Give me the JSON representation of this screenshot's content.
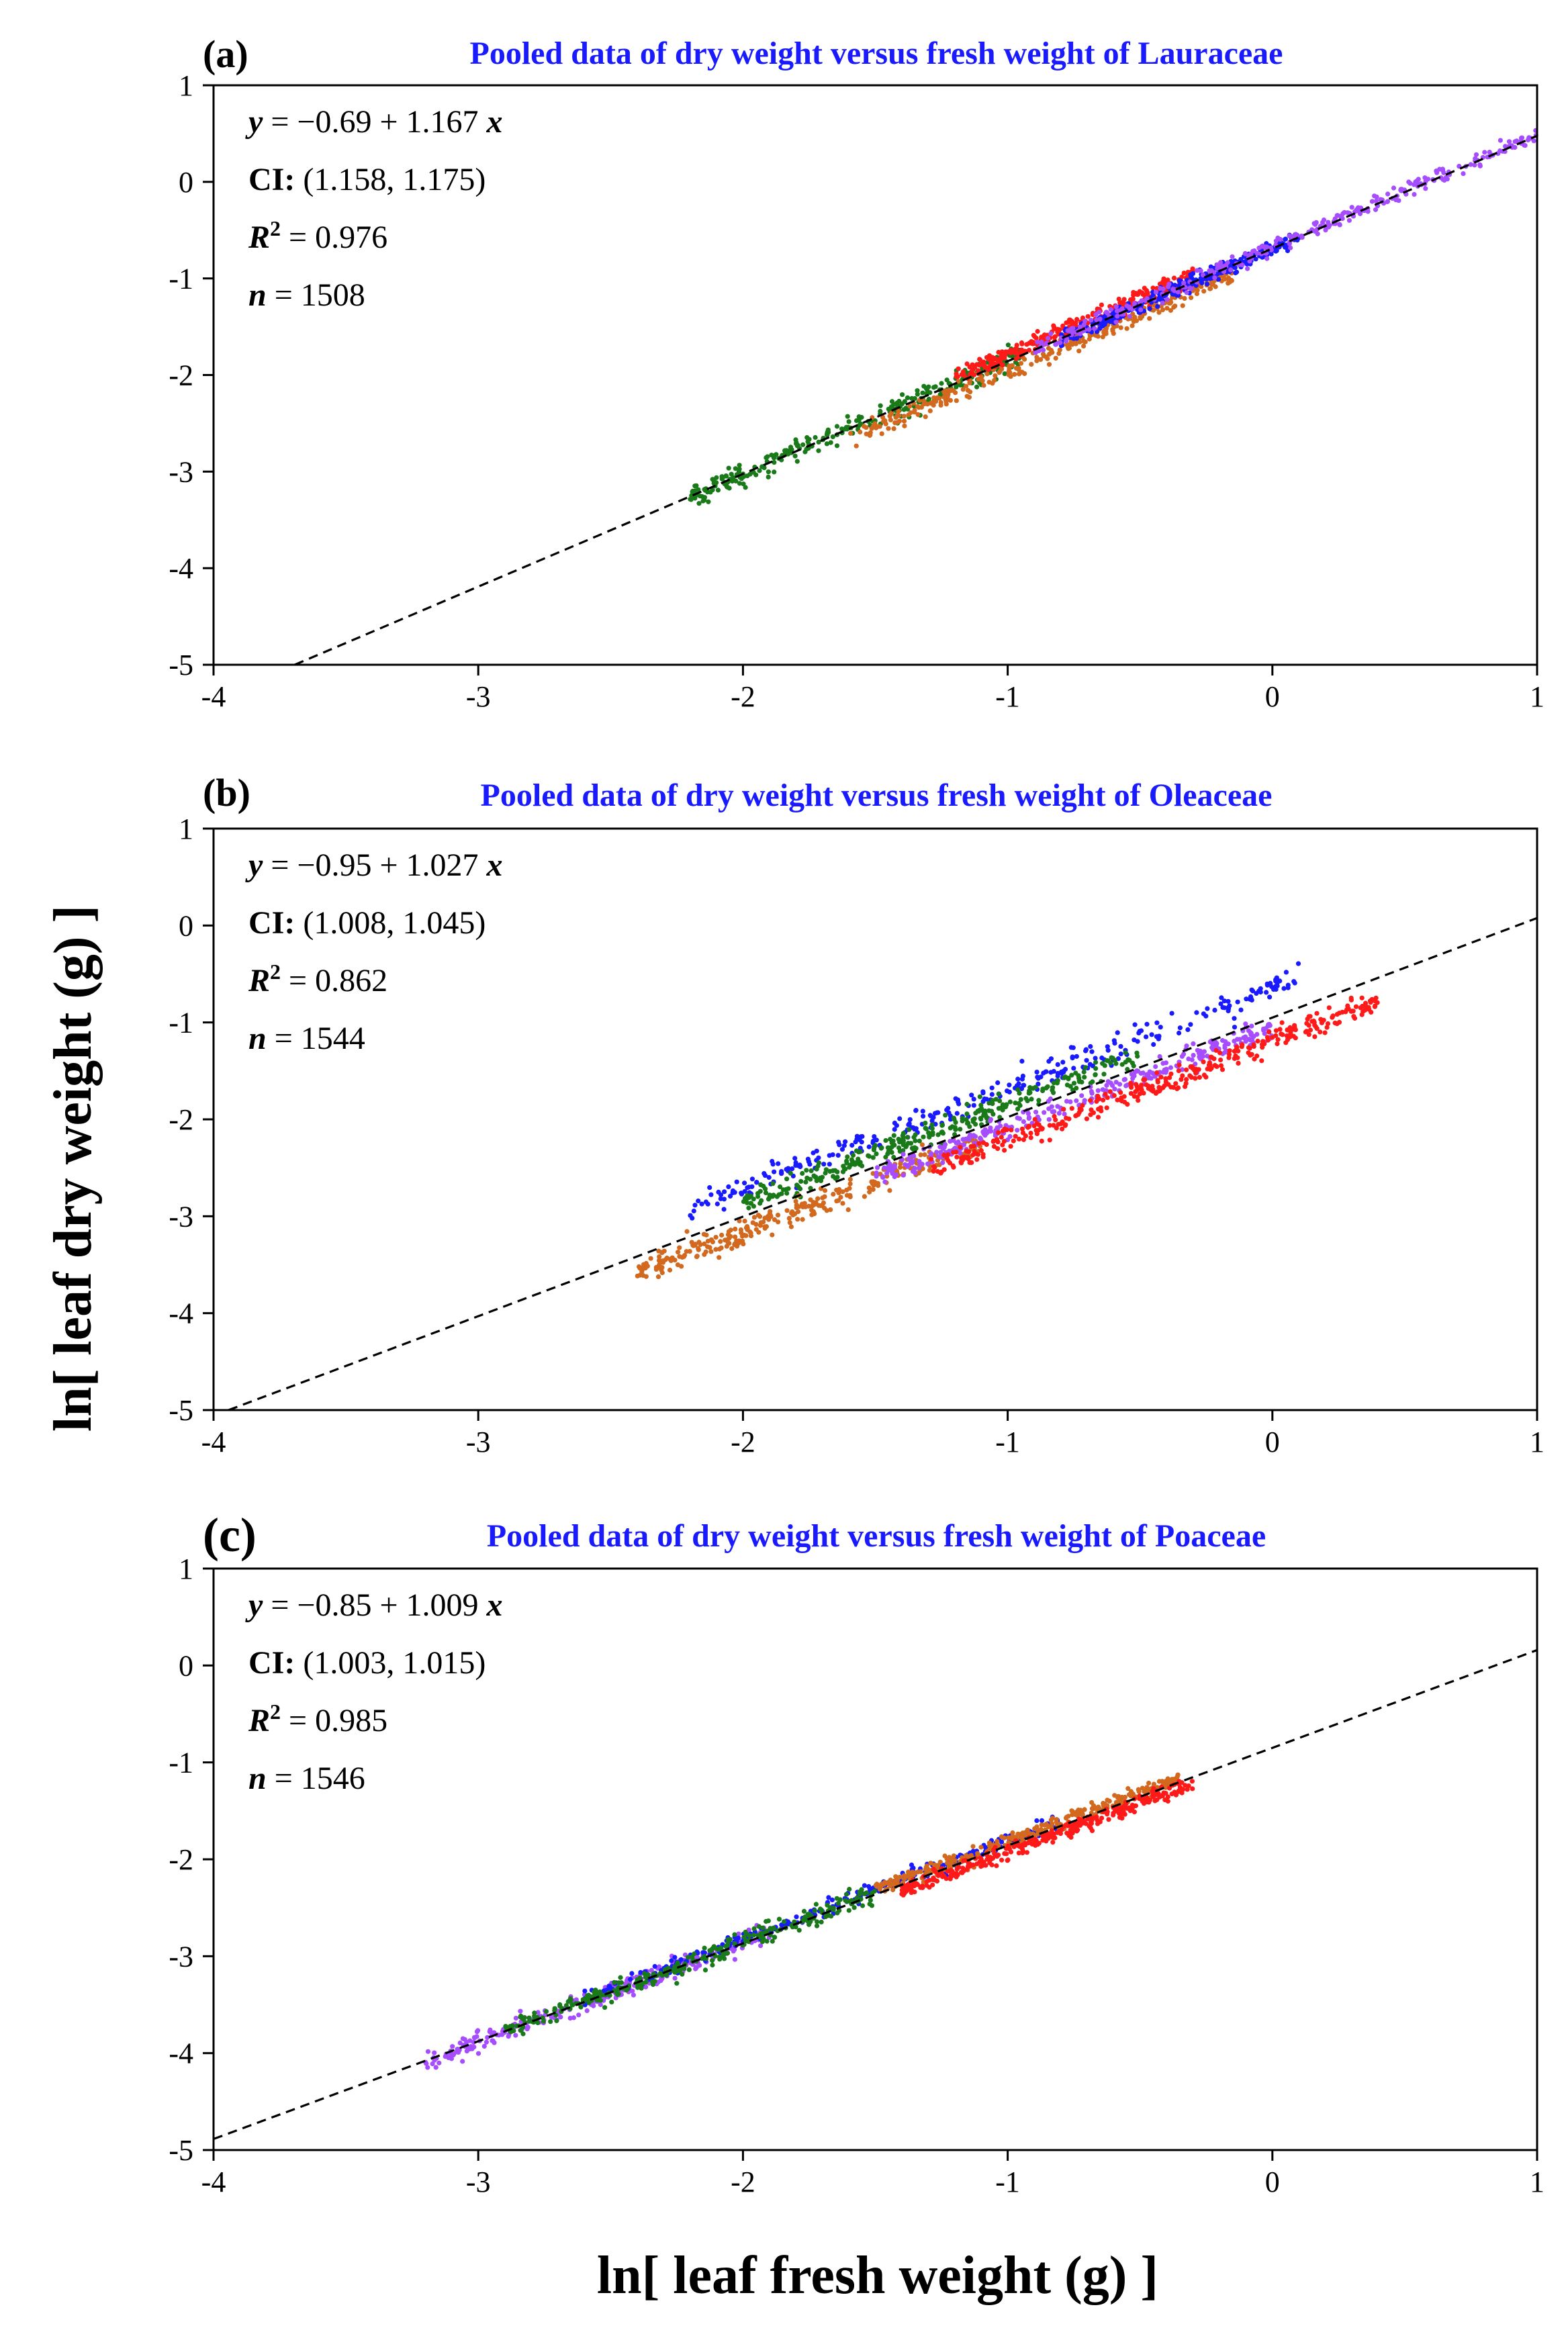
{
  "figure": {
    "ylabel": "ln[ leaf dry weight (g) ]",
    "xlabel": "ln[ leaf fresh weight (g) ]"
  },
  "colors": {
    "green": "#1a7a1a",
    "orange": "#d2691e",
    "red": "#ff1a1a",
    "blue": "#1a1aff",
    "purple": "#a64dff",
    "title": "#1a1aff"
  },
  "chart_data": [
    {
      "type": "scatter",
      "panel": "(a)",
      "title": "Pooled data of dry weight versus fresh weight of Lauraceae",
      "xlim": [
        -4,
        1
      ],
      "ylim": [
        -5,
        1
      ],
      "xticks": [
        -4,
        -3,
        -2,
        -1,
        0,
        1
      ],
      "yticks": [
        -5,
        -4,
        -3,
        -2,
        -1,
        0,
        1
      ],
      "stats": {
        "eq_prefix": "y",
        "eq_body": " = −0.69 + 1.167 ",
        "eq_suffix": "x",
        "ci_label": "CI:",
        "ci_value": " (1.158, 1.175)",
        "r2_label": "R",
        "r2_value": " = 0.976",
        "n_label": "n",
        "n_value": " = 1508"
      },
      "fit": {
        "intercept": -0.69,
        "slope": 1.167
      },
      "series": [
        {
          "name": "green",
          "color_key": "green",
          "count": 300,
          "x_range": [
            -2.2,
            -0.95
          ],
          "residual_mean": 0.0,
          "spread": 0.06
        },
        {
          "name": "orange",
          "color_key": "orange",
          "count": 300,
          "x_range": [
            -1.6,
            -0.15
          ],
          "residual_mean": -0.1,
          "spread": 0.05
        },
        {
          "name": "red",
          "color_key": "red",
          "count": 300,
          "x_range": [
            -1.2,
            -0.3
          ],
          "residual_mean": 0.07,
          "spread": 0.05
        },
        {
          "name": "blue",
          "color_key": "blue",
          "count": 300,
          "x_range": [
            -0.8,
            0.1
          ],
          "residual_mean": 0.0,
          "spread": 0.04
        },
        {
          "name": "purple",
          "color_key": "purple",
          "count": 308,
          "x_range": [
            -0.9,
            1.0
          ],
          "residual_mean": 0.01,
          "spread": 0.04
        }
      ]
    },
    {
      "type": "scatter",
      "panel": "(b)",
      "title": "Pooled data of dry weight versus fresh weight of Oleaceae",
      "xlim": [
        -4,
        1
      ],
      "ylim": [
        -5,
        1
      ],
      "xticks": [
        -4,
        -3,
        -2,
        -1,
        0,
        1
      ],
      "yticks": [
        -5,
        -4,
        -3,
        -2,
        -1,
        0,
        1
      ],
      "stats": {
        "eq_prefix": "y",
        "eq_body": " = −0.95 + 1.027 ",
        "eq_suffix": "x",
        "ci_label": "CI:",
        "ci_value": " (1.008, 1.045)",
        "r2_label": "R",
        "r2_value": " = 0.862",
        "n_label": "n",
        "n_value": " = 1544"
      },
      "fit": {
        "intercept": -0.95,
        "slope": 1.027
      },
      "series": [
        {
          "name": "blue",
          "color_key": "blue",
          "count": 300,
          "x_range": [
            -2.2,
            0.1
          ],
          "residual_mean": 0.3,
          "spread": 0.07
        },
        {
          "name": "green",
          "color_key": "green",
          "count": 300,
          "x_range": [
            -2.0,
            -0.5
          ],
          "residual_mean": 0.13,
          "spread": 0.06
        },
        {
          "name": "orange",
          "color_key": "orange",
          "count": 300,
          "x_range": [
            -2.4,
            -1.1
          ],
          "residual_mean": -0.16,
          "spread": 0.07
        },
        {
          "name": "purple",
          "color_key": "purple",
          "count": 300,
          "x_range": [
            -1.5,
            0.0
          ],
          "residual_mean": -0.1,
          "spread": 0.06
        },
        {
          "name": "red",
          "color_key": "red",
          "count": 344,
          "x_range": [
            -1.3,
            0.4
          ],
          "residual_mean": -0.24,
          "spread": 0.06
        }
      ]
    },
    {
      "type": "scatter",
      "panel": "(c)",
      "title": "Pooled data of dry weight versus fresh weight of Poaceae",
      "xlim": [
        -4,
        1
      ],
      "ylim": [
        -5,
        1
      ],
      "xticks": [
        -4,
        -3,
        -2,
        -1,
        0,
        1
      ],
      "yticks": [
        -5,
        -4,
        -3,
        -2,
        -1,
        0,
        1
      ],
      "stats": {
        "eq_prefix": "y",
        "eq_body": " = −0.85 + 1.009 ",
        "eq_suffix": "x",
        "ci_label": "CI:",
        "ci_value": " (1.003, 1.015)",
        "r2_label": "R",
        "r2_value": " = 0.985",
        "n_label": "n",
        "n_value": " = 1546"
      },
      "fit": {
        "intercept": -0.85,
        "slope": 1.009
      },
      "series": [
        {
          "name": "purple",
          "color_key": "purple",
          "count": 310,
          "x_range": [
            -3.2,
            -1.9
          ],
          "residual_mean": 0.0,
          "spread": 0.05
        },
        {
          "name": "blue",
          "color_key": "blue",
          "count": 300,
          "x_range": [
            -2.6,
            -0.8
          ],
          "residual_mean": 0.04,
          "spread": 0.04
        },
        {
          "name": "green",
          "color_key": "green",
          "count": 300,
          "x_range": [
            -2.9,
            -1.5
          ],
          "residual_mean": 0.01,
          "spread": 0.05
        },
        {
          "name": "orange",
          "color_key": "orange",
          "count": 318,
          "x_range": [
            -1.5,
            -0.35
          ],
          "residual_mean": 0.04,
          "spread": 0.04
        },
        {
          "name": "red",
          "color_key": "red",
          "count": 318,
          "x_range": [
            -1.4,
            -0.3
          ],
          "residual_mean": -0.06,
          "spread": 0.04
        }
      ]
    }
  ]
}
